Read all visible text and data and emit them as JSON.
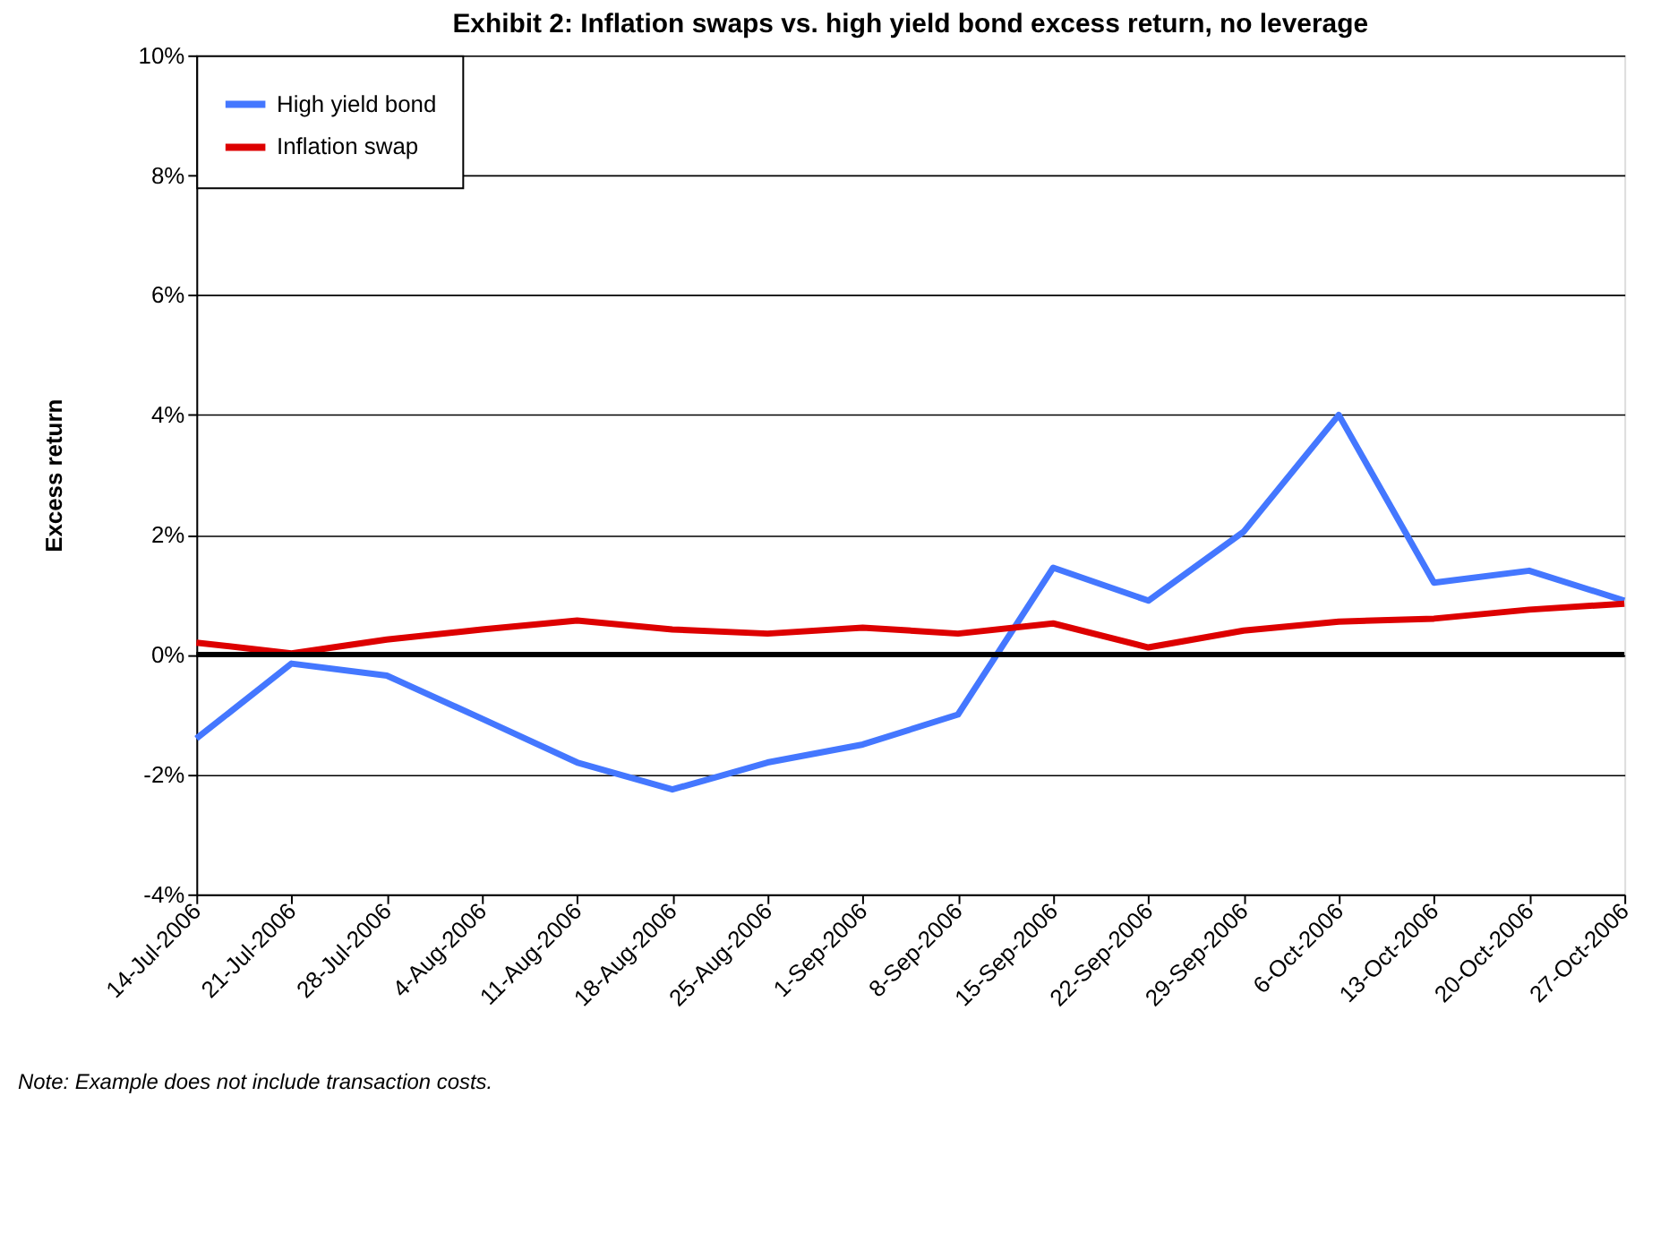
{
  "chart_data": {
    "type": "line",
    "title": "Exhibit 2: Inflation swaps vs. high yield bond excess return, no leverage",
    "ylabel": "Excess return",
    "categories": [
      "14-Jul-2006",
      "21-Jul-2006",
      "28-Jul-2006",
      "4-Aug-2006",
      "11-Aug-2006",
      "18-Aug-2006",
      "25-Aug-2006",
      "1-Sep-2006",
      "8-Sep-2006",
      "15-Sep-2006",
      "22-Sep-2006",
      "29-Sep-2006",
      "6-Oct-2006",
      "13-Oct-2006",
      "20-Oct-2006",
      "27-Oct-2006"
    ],
    "series": [
      {
        "name": "High yield bond",
        "color": "#4477ff",
        "values": [
          -1.4,
          -0.15,
          -0.35,
          -1.07,
          -1.8,
          -2.25,
          -1.8,
          -1.5,
          -1.0,
          1.45,
          0.9,
          2.05,
          4.0,
          1.2,
          1.4,
          0.9
        ]
      },
      {
        "name": "Inflation swap",
        "color": "#dd0000",
        "values": [
          0.2,
          0.02,
          0.25,
          0.42,
          0.57,
          0.42,
          0.35,
          0.45,
          0.35,
          0.52,
          0.12,
          0.4,
          0.55,
          0.6,
          0.75,
          0.85
        ]
      }
    ],
    "ylim": [
      -4,
      10
    ],
    "yticks": [
      {
        "value": -4,
        "label": "-4%"
      },
      {
        "value": -2,
        "label": "-2%"
      },
      {
        "value": 0,
        "label": "0%"
      },
      {
        "value": 2,
        "label": "2%"
      },
      {
        "value": 4,
        "label": "4%"
      },
      {
        "value": 6,
        "label": "6%"
      },
      {
        "value": 8,
        "label": "8%"
      },
      {
        "value": 10,
        "label": "10%"
      }
    ],
    "ref_lines": [
      {
        "axis": "y",
        "value": 0,
        "color": "#000000"
      }
    ],
    "annotations": [
      "Note: Example does not include transaction costs."
    ],
    "grid": "y",
    "legend": "top left",
    "marker": "none",
    "line_style": "solid"
  }
}
